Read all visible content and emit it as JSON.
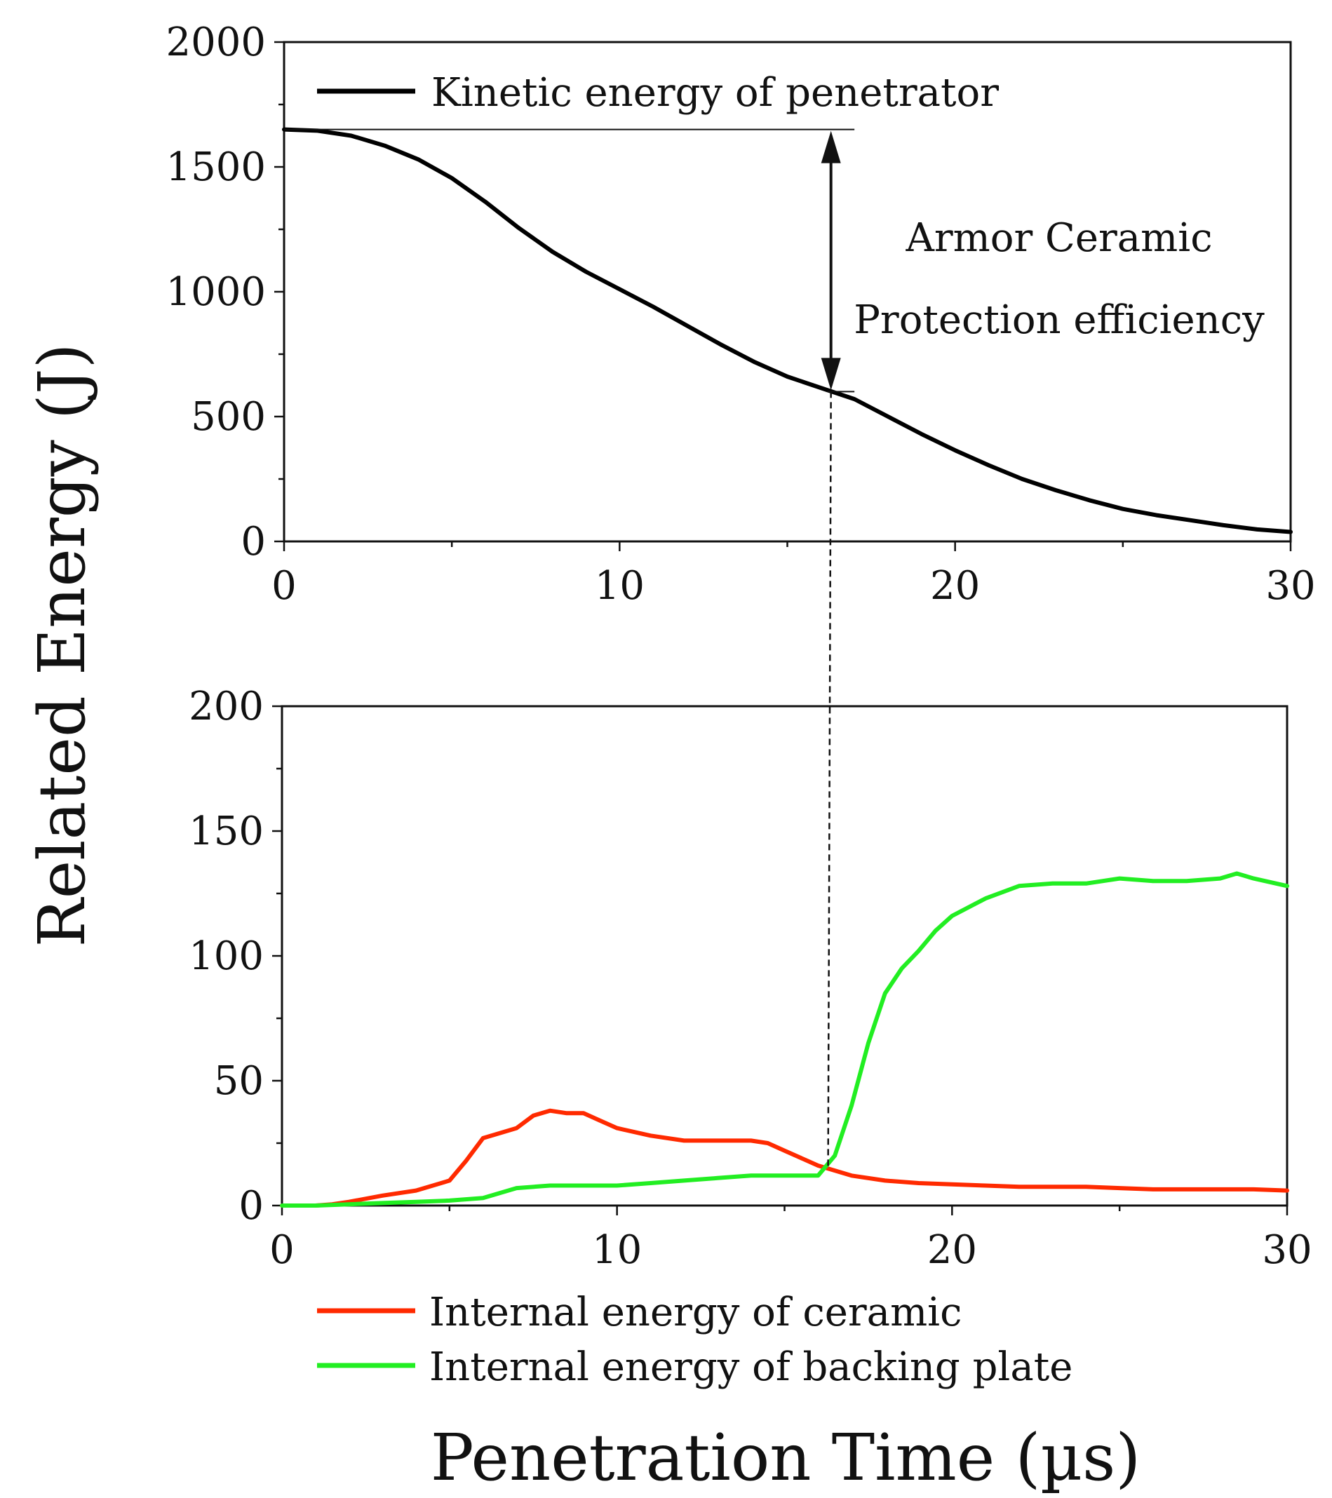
{
  "ylabel": "Related Energy (J)",
  "xlabel": "Penetration Time (µs)",
  "annotation": {
    "line1": "Armor Ceramic",
    "line2": "Protection efficiency",
    "arrow_from": 1650,
    "arrow_to": 600,
    "at_x": 16.3
  },
  "colors": {
    "kinetic": "#000000",
    "ceramic": "#ff2a00",
    "backing": "#22ee22",
    "axes": "#111111"
  },
  "chart_data": [
    {
      "type": "line",
      "title": "",
      "xlabel": "Penetration Time (µs)",
      "ylabel": "Related Energy (J)",
      "xlim": [
        0,
        30
      ],
      "ylim": [
        0,
        2000
      ],
      "xticks": [
        0,
        10,
        20,
        30
      ],
      "yticks": [
        0,
        500,
        1000,
        1500,
        2000
      ],
      "legend_position": "top-left",
      "series": [
        {
          "name": "Kinetic energy of penetrator",
          "color": "#000000",
          "x": [
            0,
            1,
            2,
            3,
            4,
            5,
            6,
            7,
            8,
            9,
            10,
            11,
            12,
            13,
            14,
            15,
            16,
            17,
            18,
            19,
            20,
            21,
            22,
            23,
            24,
            25,
            26,
            27,
            28,
            29,
            30
          ],
          "values": [
            1650,
            1645,
            1625,
            1585,
            1530,
            1455,
            1360,
            1255,
            1160,
            1080,
            1010,
            940,
            865,
            790,
            720,
            660,
            615,
            570,
            500,
            430,
            365,
            305,
            250,
            205,
            165,
            130,
            105,
            85,
            65,
            48,
            38
          ]
        }
      ]
    },
    {
      "type": "line",
      "title": "",
      "xlabel": "Penetration Time (µs)",
      "ylabel": "Related Energy (J)",
      "xlim": [
        0,
        30
      ],
      "ylim": [
        0,
        200
      ],
      "xticks": [
        0,
        10,
        20,
        30
      ],
      "yticks": [
        0,
        50,
        100,
        150,
        200
      ],
      "legend_position": "bottom",
      "series": [
        {
          "name": "Internal energy of ceramic",
          "color": "#ff2a00",
          "x": [
            0,
            1,
            1.5,
            2,
            3,
            4,
            5,
            5.5,
            6,
            6.5,
            7,
            7.5,
            8,
            8.5,
            9,
            9.5,
            10,
            11,
            12,
            13,
            14,
            14.5,
            15,
            16,
            17,
            18,
            19,
            20,
            21,
            22,
            23,
            24,
            25,
            26,
            27,
            28,
            29,
            30
          ],
          "values": [
            0,
            0,
            0.5,
            1.5,
            4,
            6,
            10,
            18,
            27,
            29,
            31,
            36,
            38,
            37,
            37,
            34,
            31,
            28,
            26,
            26,
            26,
            25,
            22,
            16,
            12,
            10,
            9,
            8.5,
            8,
            7.5,
            7.5,
            7.5,
            7,
            6.5,
            6.5,
            6.5,
            6.5,
            6
          ]
        },
        {
          "name": "Internal energy of backing plate",
          "color": "#22ee22",
          "x": [
            0,
            1,
            2,
            3,
            4,
            5,
            6,
            7,
            8,
            9,
            10,
            11,
            12,
            13,
            14,
            15,
            16,
            16.5,
            17,
            17.5,
            18,
            18.5,
            19,
            19.5,
            20,
            21,
            22,
            23,
            24,
            25,
            26,
            27,
            28,
            28.5,
            29,
            30
          ],
          "values": [
            0,
            0,
            0.5,
            1,
            1.5,
            2,
            3,
            7,
            8,
            8,
            8,
            9,
            10,
            11,
            12,
            12,
            12,
            20,
            40,
            65,
            85,
            95,
            102,
            110,
            116,
            123,
            128,
            129,
            129,
            131,
            130,
            130,
            131,
            133,
            131,
            128
          ]
        }
      ]
    }
  ]
}
